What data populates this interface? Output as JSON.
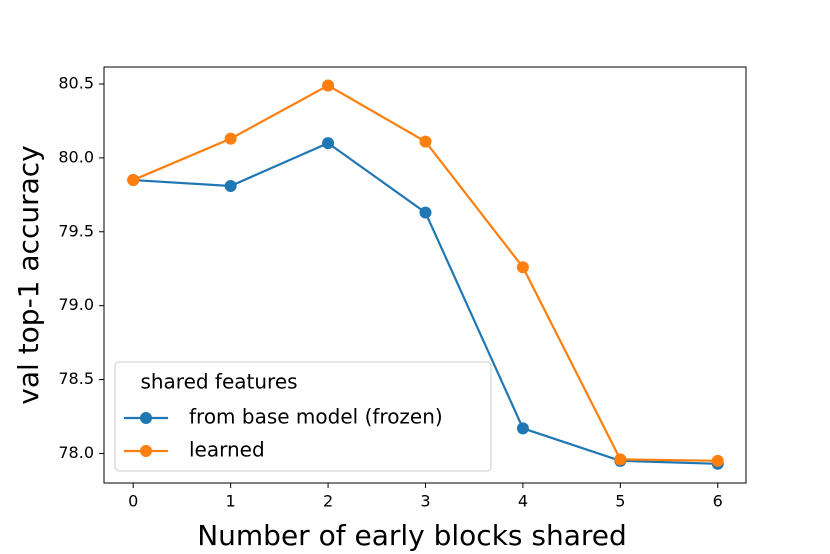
{
  "chart_data": {
    "type": "line",
    "x_label": "Number of early blocks shared",
    "y_label": "val top-1 accuracy",
    "x": [
      0,
      1,
      2,
      3,
      4,
      5,
      6
    ],
    "series": [
      {
        "name": "from base model (frozen)",
        "color": "#1f77b4",
        "values": [
          79.85,
          79.81,
          80.1,
          79.63,
          78.17,
          77.95,
          77.93
        ]
      },
      {
        "name": "learned",
        "color": "#ff7f0e",
        "values": [
          79.85,
          80.13,
          80.49,
          80.11,
          79.26,
          77.96,
          77.95
        ]
      }
    ],
    "xlim": [
      -0.3,
      6.29
    ],
    "ylim": [
      77.8,
      80.615
    ],
    "xticks": [
      0,
      1,
      2,
      3,
      4,
      5,
      6
    ],
    "yticks": [
      {
        "value": 78,
        "label": "78.0"
      },
      78.5,
      {
        "value": 79,
        "label": "79.0"
      },
      79.5,
      {
        "value": 80,
        "label": "80.0"
      },
      80.5
    ],
    "legend_title": "shared features",
    "legend": "lower left"
  }
}
